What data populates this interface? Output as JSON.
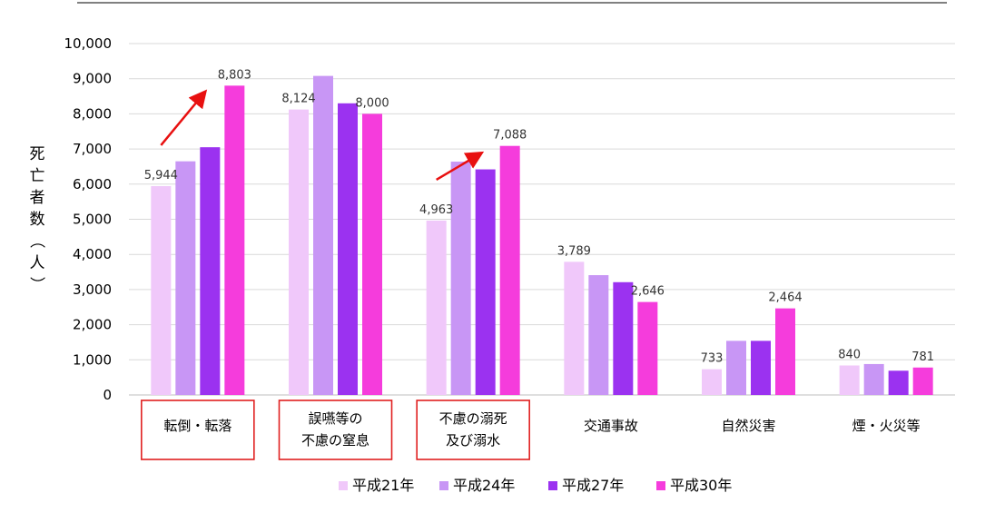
{
  "chart_data": {
    "type": "bar",
    "ylabel": "死亡者数（人）",
    "ylim": [
      0,
      10000
    ],
    "yticks": [
      "0",
      "1,000",
      "2,000",
      "3,000",
      "4,000",
      "5,000",
      "6,000",
      "7,000",
      "8,000",
      "9,000",
      "10,000"
    ],
    "categories": [
      [
        "転倒・転落"
      ],
      [
        "誤嚥等の",
        "不慮の窒息"
      ],
      [
        "不慮の溺死",
        "及び溺水"
      ],
      [
        "交通事故"
      ],
      [
        "自然災害"
      ],
      [
        "煙・火災等"
      ]
    ],
    "highlighted_categories": [
      0,
      1,
      2
    ],
    "trend_arrows": [
      0,
      2
    ],
    "series": [
      {
        "name": "平成21年",
        "color": "#f0c8fa",
        "values": [
          5944,
          8124,
          4963,
          3789,
          733,
          840
        ],
        "labels": [
          "5,944",
          "8,124",
          "4,963",
          "3,789",
          "733",
          "840"
        ]
      },
      {
        "name": "平成24年",
        "color": "#c896f5",
        "values": [
          6650,
          9080,
          6640,
          3410,
          1540,
          880
        ],
        "labels": [
          "",
          "",
          "",
          "",
          "",
          ""
        ]
      },
      {
        "name": "平成27年",
        "color": "#9b32f0",
        "values": [
          7050,
          8300,
          6420,
          3210,
          1540,
          690
        ],
        "labels": [
          "",
          "",
          "",
          "",
          "",
          ""
        ]
      },
      {
        "name": "平成30年",
        "color": "#f53cdc",
        "values": [
          8803,
          8000,
          7088,
          2646,
          2464,
          781
        ],
        "labels": [
          "8,803",
          "8,000",
          "7,088",
          "2,646",
          "2,464",
          "781"
        ]
      }
    ],
    "highlight_color": "#e02020",
    "arrow_color": "#e81010"
  }
}
